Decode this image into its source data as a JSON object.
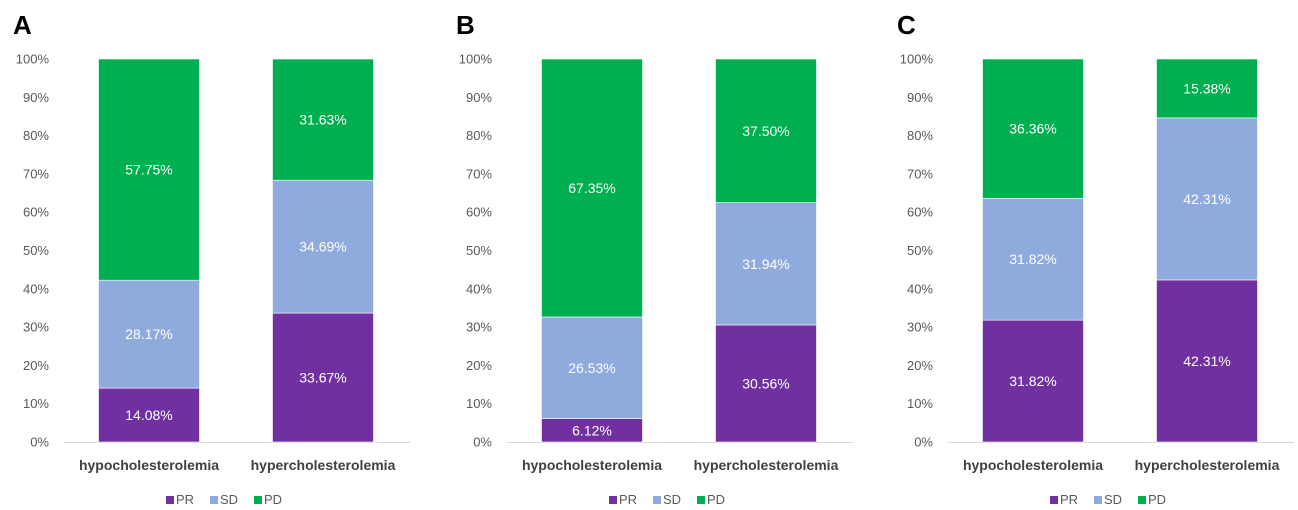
{
  "legend": [
    "PR",
    "SD",
    "PD"
  ],
  "colors": {
    "PR": "#7030a0",
    "SD": "#8faadc",
    "PD": "#00b050"
  },
  "chart_data": [
    {
      "panel": "A",
      "type": "bar",
      "stacked": true,
      "categories": [
        "hypocholesterolemia",
        "hypercholesterolemia"
      ],
      "series": [
        {
          "name": "PR",
          "values": [
            14.08,
            33.67
          ],
          "labels": [
            "14.08%",
            "33.67%"
          ]
        },
        {
          "name": "SD",
          "values": [
            28.17,
            34.69
          ],
          "labels": [
            "28.17%",
            "34.69%"
          ]
        },
        {
          "name": "PD",
          "values": [
            57.75,
            31.63
          ],
          "labels": [
            "57.75%",
            "31.63%"
          ]
        }
      ],
      "ylim": [
        0,
        100
      ],
      "yticks": [
        "0%",
        "10%",
        "20%",
        "30%",
        "40%",
        "50%",
        "60%",
        "70%",
        "80%",
        "90%",
        "100%"
      ],
      "legend_position": "bottom",
      "grid": false
    },
    {
      "panel": "B",
      "type": "bar",
      "stacked": true,
      "categories": [
        "hypocholesterolemia",
        "hypercholesterolemia"
      ],
      "series": [
        {
          "name": "PR",
          "values": [
            6.12,
            30.56
          ],
          "labels": [
            "6.12%",
            "30.56%"
          ]
        },
        {
          "name": "SD",
          "values": [
            26.53,
            31.94
          ],
          "labels": [
            "26.53%",
            "31.94%"
          ]
        },
        {
          "name": "PD",
          "values": [
            67.35,
            37.5
          ],
          "labels": [
            "67.35%",
            "37.50%"
          ]
        }
      ],
      "ylim": [
        0,
        100
      ],
      "yticks": [
        "0%",
        "10%",
        "20%",
        "30%",
        "40%",
        "50%",
        "60%",
        "70%",
        "80%",
        "90%",
        "100%"
      ],
      "legend_position": "bottom",
      "grid": false
    },
    {
      "panel": "C",
      "type": "bar",
      "stacked": true,
      "categories": [
        "hypocholesterolemia",
        "hypercholesterolemia"
      ],
      "series": [
        {
          "name": "PR",
          "values": [
            31.82,
            42.31
          ],
          "labels": [
            "31.82%",
            "42.31%"
          ]
        },
        {
          "name": "SD",
          "values": [
            31.82,
            42.31
          ],
          "labels": [
            "31.82%",
            "42.31%"
          ]
        },
        {
          "name": "PD",
          "values": [
            36.36,
            15.38
          ],
          "labels": [
            "36.36%",
            "15.38%"
          ]
        }
      ],
      "ylim": [
        0,
        100
      ],
      "yticks": [
        "0%",
        "10%",
        "20%",
        "30%",
        "40%",
        "50%",
        "60%",
        "70%",
        "80%",
        "90%",
        "100%"
      ],
      "legend_position": "bottom",
      "grid": false
    }
  ]
}
